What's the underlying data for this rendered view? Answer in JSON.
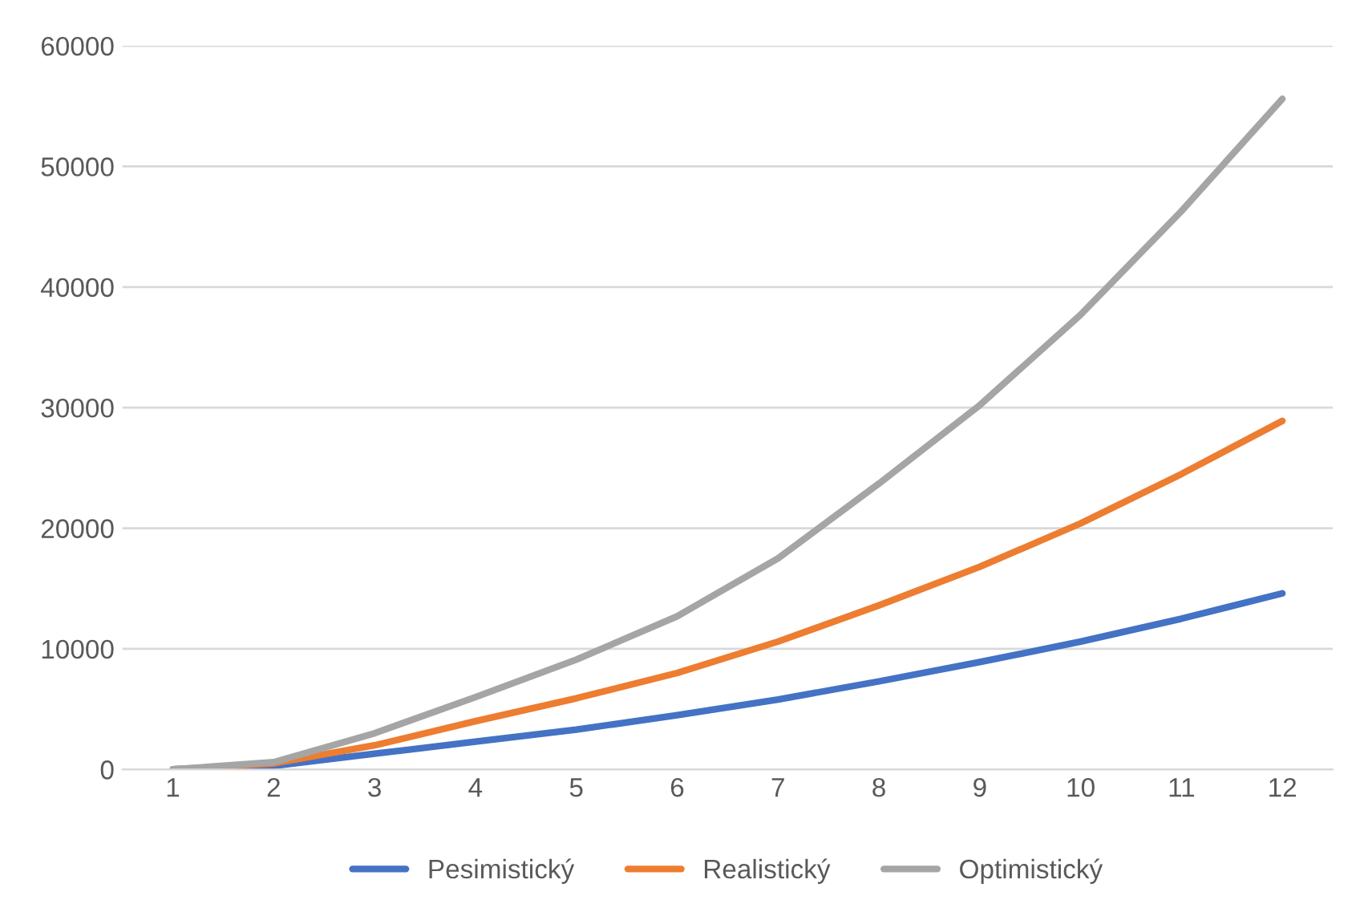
{
  "chart_data": {
    "type": "line",
    "categories": [
      "1",
      "2",
      "3",
      "4",
      "5",
      "6",
      "7",
      "8",
      "9",
      "10",
      "11",
      "12"
    ],
    "series": [
      {
        "name": "Pesimistický",
        "color": "#4472c4",
        "values": [
          0,
          300,
          1300,
          2300,
          3300,
          4500,
          5800,
          7300,
          8900,
          10600,
          12500,
          14600
        ]
      },
      {
        "name": "Realistický",
        "color": "#ed7d31",
        "values": [
          0,
          500,
          2000,
          4000,
          5900,
          8000,
          10600,
          13600,
          16800,
          20400,
          24500,
          28900
        ]
      },
      {
        "name": "Optimistický",
        "color": "#a5a5a5",
        "values": [
          0,
          600,
          3000,
          6000,
          9100,
          12700,
          17500,
          23700,
          30200,
          37700,
          46300,
          55600
        ]
      }
    ],
    "ylim": [
      0,
      60000
    ],
    "yticks": [
      0,
      10000,
      20000,
      30000,
      40000,
      50000,
      60000
    ],
    "grid": "y",
    "legend": "bottom",
    "marker": "none",
    "line_style": "solid"
  }
}
